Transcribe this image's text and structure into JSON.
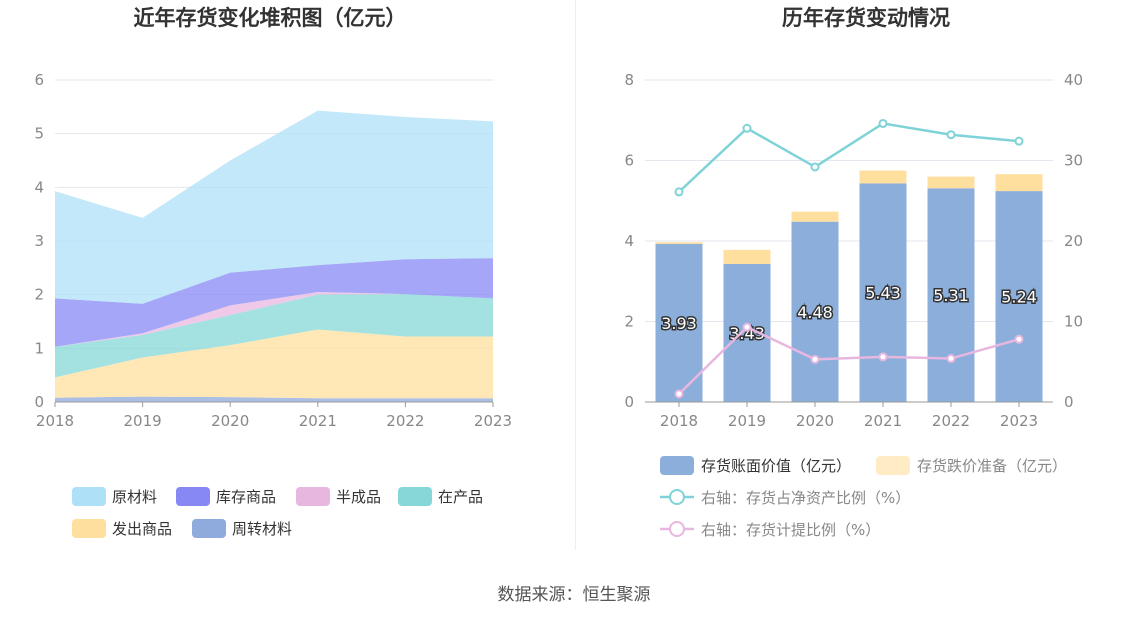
{
  "footer": {
    "source": "数据来源：恒生聚源"
  },
  "chart_data": [
    {
      "type": "area",
      "stacked": true,
      "title": "近年存货变化堆积图（亿元）",
      "x": [
        "2018",
        "2019",
        "2020",
        "2021",
        "2022",
        "2023"
      ],
      "ylim": [
        0,
        6
      ],
      "yticks": [
        "0",
        "1",
        "2",
        "3",
        "4",
        "5",
        "6"
      ],
      "grid": true,
      "legend_position": "bottom",
      "series": [
        {
          "name": "周转材料",
          "color": "#8faadc",
          "values": [
            0.08,
            0.1,
            0.09,
            0.07,
            0.07,
            0.07
          ]
        },
        {
          "name": "发出商品",
          "color": "#ffdf9e",
          "values": [
            0.38,
            0.73,
            0.97,
            1.28,
            1.15,
            1.15
          ]
        },
        {
          "name": "在产品",
          "color": "#86d8d8",
          "values": [
            0.57,
            0.42,
            0.56,
            0.65,
            0.79,
            0.71
          ]
        },
        {
          "name": "半成品",
          "color": "#e8b7e0",
          "values": [
            0.0,
            0.03,
            0.18,
            0.05,
            0.0,
            0.0
          ]
        },
        {
          "name": "库存商品",
          "color": "#8888f5",
          "values": [
            0.9,
            0.55,
            0.61,
            0.5,
            0.65,
            0.75
          ]
        },
        {
          "name": "原材料",
          "color": "#aee0f8",
          "values": [
            2.0,
            1.6,
            2.09,
            2.88,
            2.65,
            2.55
          ]
        }
      ],
      "legend_order": [
        "原材料",
        "库存商品",
        "半成品",
        "在产品",
        "发出商品",
        "周转材料"
      ]
    },
    {
      "type": "bar",
      "stacked": true,
      "title": "历年存货变动情况",
      "categories": [
        "2018",
        "2019",
        "2020",
        "2021",
        "2022",
        "2023"
      ],
      "ylim": [
        0,
        8
      ],
      "yticks": [
        "0",
        "2",
        "4",
        "6",
        "8"
      ],
      "y2lim": [
        0,
        40
      ],
      "y2ticks": [
        "0",
        "10",
        "20",
        "30",
        "40"
      ],
      "grid": true,
      "legend_position": "bottom",
      "series": [
        {
          "name": "存货账面价值（亿元）",
          "color": "#8caedb",
          "values": [
            3.93,
            3.43,
            4.48,
            5.43,
            5.31,
            5.24
          ],
          "labels": [
            "3.93",
            "3.43",
            "4.48",
            "5.43",
            "5.31",
            "5.24"
          ]
        },
        {
          "name": "存货跌价准备（亿元）",
          "color": "#ffdf9e",
          "values": [
            0.04,
            0.35,
            0.25,
            0.32,
            0.29,
            0.42
          ]
        }
      ],
      "line_series": [
        {
          "name": "右轴：存货占净资产比例（%）",
          "color": "#7fd3d8",
          "axis": "right",
          "values": [
            26.1,
            34.0,
            29.2,
            34.6,
            33.2,
            32.4
          ]
        },
        {
          "name": "右轴：存货计提比例（%）",
          "color": "#e8b7e0",
          "axis": "right",
          "values": [
            1.0,
            9.3,
            5.3,
            5.6,
            5.4,
            7.8
          ]
        }
      ]
    }
  ]
}
